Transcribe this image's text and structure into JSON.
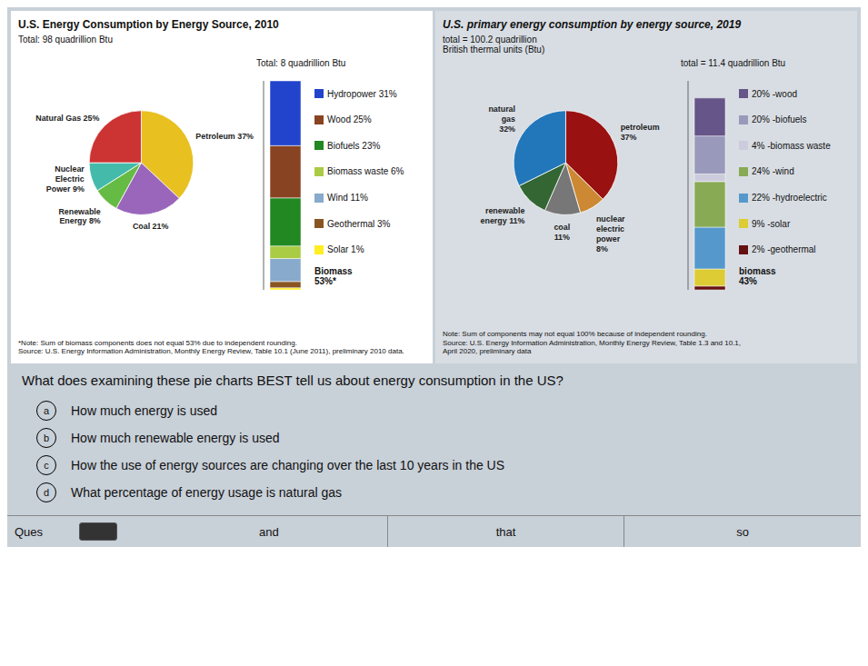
{
  "chart_data": [
    {
      "type": "pie",
      "title": "U.S. Energy Consumption by Energy Source, 2010",
      "subtitle": "Total: 98 quadrillion Btu",
      "categories": [
        "Petroleum 37%",
        "Coal 21%",
        "Renewable\nEnergy 8%",
        "Nuclear\nElectric\nPower 9%",
        "Natural Gas 25%"
      ],
      "values": [
        37,
        21,
        8,
        9,
        25
      ],
      "colors": [
        "#e8c020",
        "#9966bb",
        "#66bb44",
        "#44bbaa",
        "#cc3333"
      ],
      "annotations": [
        "*Note: Sum of biomass components does not equal 53% due to independent rounding.",
        "Source: U.S. Energy Information Administration, Monthly Energy Review, Table 10.1 (June 2011), preliminary 2010 data."
      ]
    },
    {
      "type": "bar",
      "stacked": true,
      "subtitle": "Total: 8 quadrillion Btu",
      "series": [
        {
          "name": "Solar 1%",
          "color": "#ffee22",
          "values": [
            1
          ]
        },
        {
          "name": "Geothermal 3%",
          "color": "#885522",
          "values": [
            3
          ]
        },
        {
          "name": "Wind 11%",
          "color": "#88aacc",
          "values": [
            11
          ]
        },
        {
          "name": "Biomass waste 6%",
          "color": "#aacc44",
          "values": [
            6
          ]
        },
        {
          "name": "Biofuels 23%",
          "color": "#228822",
          "values": [
            23
          ]
        },
        {
          "name": "Wood 25%",
          "color": "#884422",
          "values": [
            25
          ]
        },
        {
          "name": "Hydropower 31%",
          "color": "#2244cc",
          "values": [
            31
          ]
        }
      ],
      "ylim": [
        0,
        100
      ],
      "tick_labels": false,
      "legend": "right",
      "annotations": [
        "Biomass\n53%*"
      ]
    },
    {
      "type": "pie",
      "title": "U.S. primary energy consumption by energy source, 2019",
      "subtitle": "total = 100.2 quadrillion\nBritish thermal units (Btu)",
      "categories": [
        "petroleum\n37%",
        "nuclear\nelectric\npower\n8%",
        "coal\n11%",
        "renewable\nenergy 11%",
        "natural\ngas\n32%"
      ],
      "values": [
        37,
        8,
        11,
        11,
        32
      ],
      "colors": [
        "#991111",
        "#cc8833",
        "#777777",
        "#336633",
        "#2277bb"
      ],
      "annotations": [
        "Note: Sum of components may not equal 100% because of independent rounding.",
        "Source: U.S. Energy Information Administration, Monthly Energy Review, Table 1.3 and 10.1,\nApril 2020, preliminary data"
      ]
    },
    {
      "type": "bar",
      "stacked": true,
      "subtitle": "total = 11.4 quadrillion Btu",
      "series": [
        {
          "name": "2% -geothermal",
          "color": "#661111",
          "values": [
            2
          ]
        },
        {
          "name": "9% -solar",
          "color": "#ddcc33",
          "values": [
            9
          ]
        },
        {
          "name": "22% -hydroelectric",
          "color": "#5599cc",
          "values": [
            22
          ]
        },
        {
          "name": "24% -wind",
          "color": "#88aa55",
          "values": [
            24
          ]
        },
        {
          "name": "4% -biomass waste",
          "color": "#ccccdd",
          "values": [
            4
          ]
        },
        {
          "name": "20% -biofuels",
          "color": "#9999bb",
          "values": [
            20
          ]
        },
        {
          "name": "20% -wood",
          "color": "#665588",
          "values": [
            20
          ]
        }
      ],
      "ylim": [
        0,
        110
      ],
      "tick_labels": false,
      "legend": "right",
      "annotations": [
        "biomass\n43%"
      ]
    },
    {
      "type": "text",
      "title": "What does examining these pie charts BEST tell us about energy consumption in the US?",
      "categories": [
        "a",
        "b",
        "c",
        "d"
      ],
      "annotations": [
        "How much energy is used",
        "How much renewable energy is used",
        "How the use of energy sources are changing over the last 10 years in the US",
        "What percentage of energy usage is natural gas"
      ]
    },
    {
      "type": "footer",
      "annotations": [
        "Ques",
        "and",
        "that",
        "so"
      ]
    }
  ]
}
